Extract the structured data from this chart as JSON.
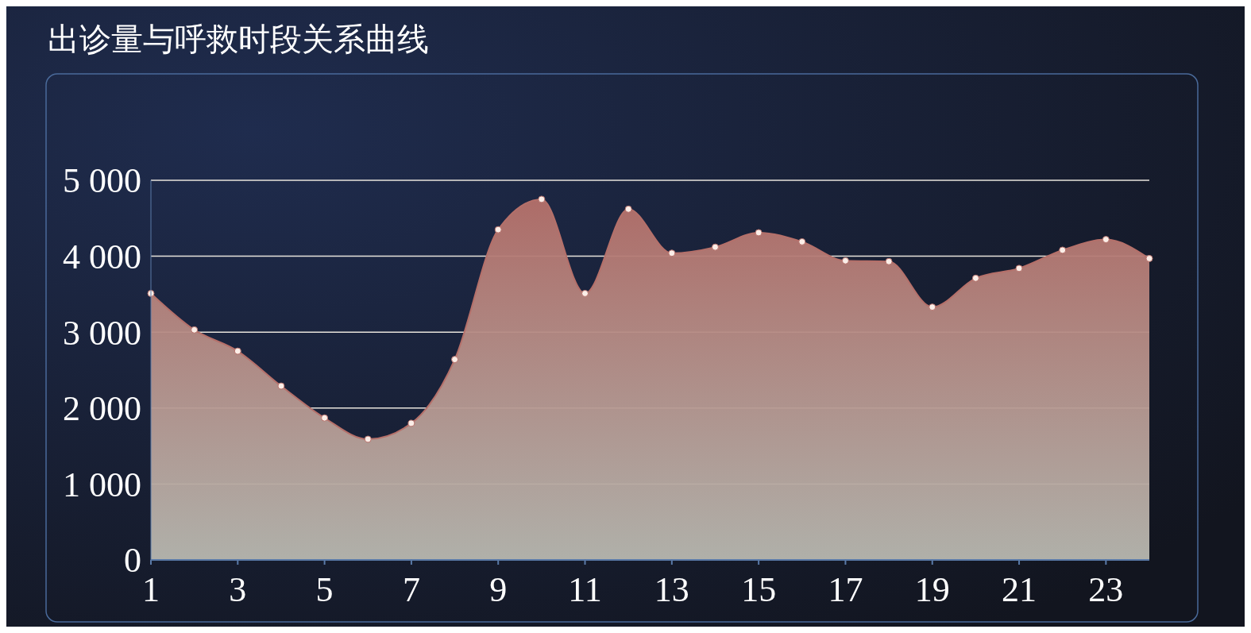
{
  "chart_data": {
    "type": "area",
    "title": "出诊量与呼救时段关系曲线",
    "x": [
      1,
      2,
      3,
      4,
      5,
      6,
      7,
      8,
      9,
      10,
      11,
      12,
      13,
      14,
      15,
      16,
      17,
      18,
      19,
      20,
      21,
      22,
      23,
      24
    ],
    "series": [
      {
        "color": "#b5706a",
        "values": [
          3510,
          3030,
          2750,
          2290,
          1870,
          1590,
          1800,
          2640,
          4350,
          4750,
          3510,
          4620,
          4040,
          4120,
          4310,
          4190,
          3940,
          3930,
          3330,
          3710,
          3840,
          4080,
          4220,
          3970
        ]
      }
    ],
    "xlim": [
      1,
      24
    ],
    "xticks": [
      1,
      3,
      5,
      7,
      9,
      11,
      13,
      15,
      17,
      19,
      21,
      23
    ],
    "ylim": [
      0,
      5000
    ],
    "yticks": [
      0,
      {
        "value": 1000,
        "label": "1 000"
      },
      {
        "value": 2000,
        "label": "2 000"
      },
      {
        "value": 3000,
        "label": "3 000"
      },
      {
        "value": 4000,
        "label": "4 000"
      },
      {
        "value": 5000,
        "label": "5 000"
      }
    ],
    "grid": "y",
    "marker": "circle"
  }
}
